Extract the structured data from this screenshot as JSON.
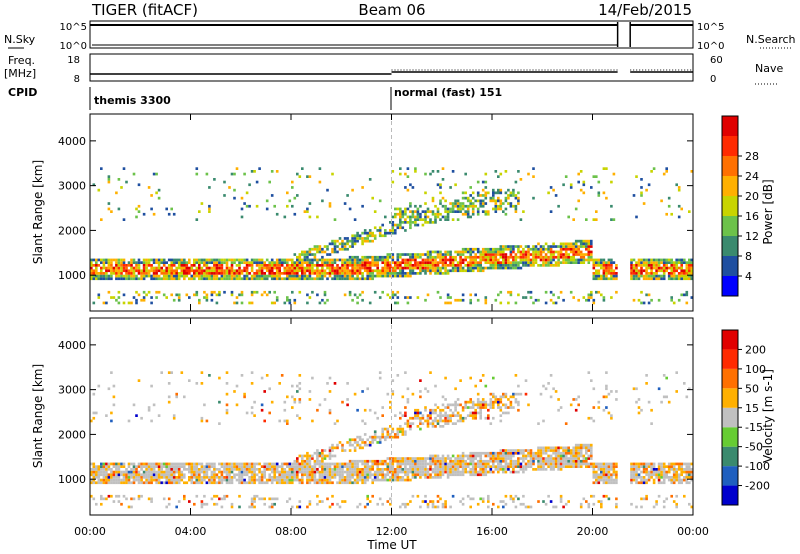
{
  "header": {
    "title": "TIGER (fitACF)",
    "beam": "Beam 06",
    "date": "14/Feb/2015"
  },
  "status": {
    "nsky_label": "N.Sky",
    "nsearch_label": "N.Search",
    "freq_label_line1": "Freq.",
    "freq_label_line2": "[MHz]",
    "nave_label": "Nave",
    "cpid_label": "CPID",
    "nsky_ticks": [
      "10^5",
      "10^0"
    ],
    "nsearch_ticks": [
      "10^5",
      "10^0"
    ],
    "freq_ticks": [
      "18",
      "8"
    ],
    "nave_ticks": [
      "60",
      "0"
    ],
    "cpid_segments": [
      {
        "label": "themis 3300",
        "start_hour": 0
      },
      {
        "label": "normal (fast) 151",
        "start_hour": 12
      }
    ]
  },
  "chart_data": [
    {
      "type": "heatmap",
      "panel": "power",
      "ylabel": "Slant Range [km]",
      "ylim": [
        200,
        4600
      ],
      "yticks": [
        "1000",
        "2000",
        "3000",
        "4000"
      ],
      "colorbar_label": "Power [dB]",
      "colorbar_ticks": [
        "4",
        "8",
        "12",
        "16",
        "20",
        "24",
        "28"
      ],
      "colors": [
        "#0000ff",
        "#1f4fa0",
        "#3a8a6e",
        "#6cc24a",
        "#c8d400",
        "#ffb000",
        "#ff7000",
        "#ff2a00",
        "#e00000"
      ],
      "data_gap_hours": [
        [
          21.0,
          21.5
        ]
      ]
    },
    {
      "type": "heatmap",
      "panel": "velocity",
      "ylabel": "Slant Range [km]",
      "ylim": [
        200,
        4600
      ],
      "yticks": [
        "1000",
        "2000",
        "3000",
        "4000"
      ],
      "colorbar_label": "Velocity [m s-1]",
      "colorbar_ticks": [
        "200",
        "100",
        "50",
        "15",
        "-15",
        "-50",
        "-100",
        "-200"
      ],
      "colors": [
        "#0000cc",
        "#1f5fbf",
        "#3a8a6e",
        "#66cc33",
        "#c0c0c0",
        "#ffb000",
        "#ff7000",
        "#ff2a00",
        "#e00000"
      ],
      "data_gap_hours": [
        [
          21.0,
          21.5
        ]
      ]
    }
  ],
  "xaxis": {
    "label": "Time UT",
    "ticks": [
      "00:00",
      "04:00",
      "08:00",
      "12:00",
      "16:00",
      "20:00",
      "00:00"
    ],
    "range_hours": [
      0,
      24
    ]
  }
}
